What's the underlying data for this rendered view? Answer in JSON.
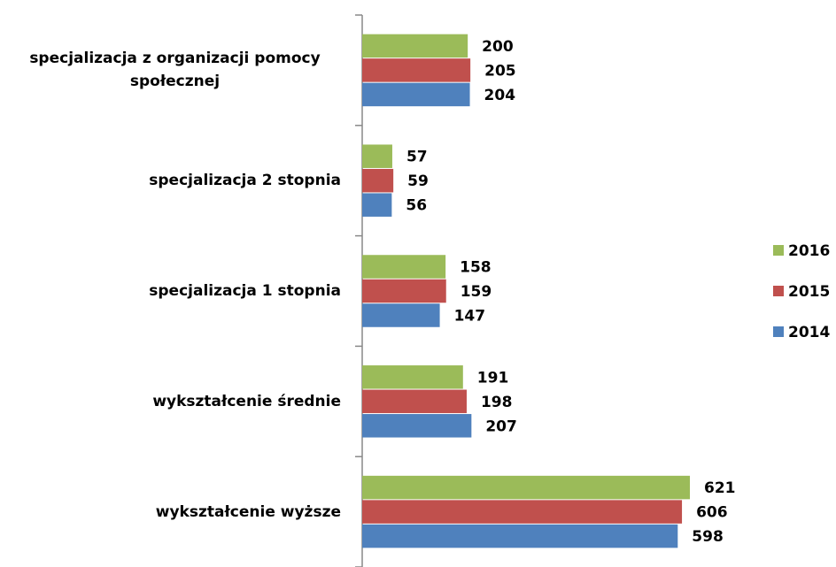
{
  "chart_data": {
    "type": "bar",
    "orientation": "horizontal",
    "categories": [
      "specjalizacja z organizacji pomocy społecznej",
      "specjalizacja 2 stopnia",
      "specjalizacja 1 stopnia",
      "wykształcenie średnie",
      "wykształcenie wyższe"
    ],
    "series": [
      {
        "name": "2016",
        "color": "#9bbb59",
        "values": [
          200,
          57,
          158,
          191,
          621
        ]
      },
      {
        "name": "2015",
        "color": "#c0504d",
        "values": [
          205,
          59,
          159,
          198,
          606
        ]
      },
      {
        "name": "2014",
        "color": "#4f81bd",
        "values": [
          204,
          56,
          147,
          207,
          598
        ]
      }
    ],
    "legend": "right"
  }
}
